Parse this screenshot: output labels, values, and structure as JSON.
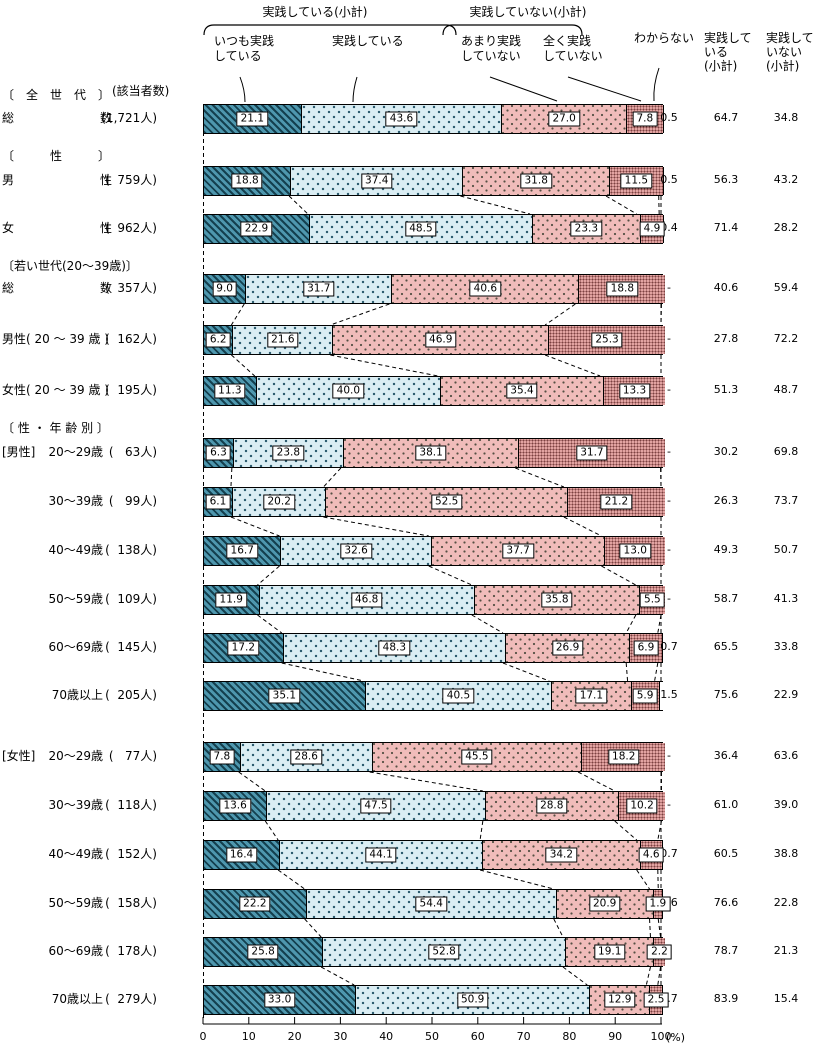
{
  "header": {
    "people_col": "(該当者数)",
    "practice_subtotal_brace": "実践している(小計)",
    "not_practice_subtotal_brace": "実践していない(小計)",
    "segment_labels": [
      "いつも実践\nしている",
      "実践している",
      "あまり実践\nしていない",
      "全く実践\nしていない",
      "わからない"
    ],
    "sub_yes_col": "実践して\nいる\n(小計)",
    "sub_no_col": "実践して\nいない\n(小計)"
  },
  "axis": {
    "ticks": [
      0,
      10,
      20,
      30,
      40,
      50,
      60,
      70,
      80,
      90,
      100
    ],
    "unit": "(%)",
    "xlim": [
      0,
      100
    ]
  },
  "colors": {
    "always_base": "#4E97AE",
    "always_stripe": "#14404F",
    "practice_base": "#DAEDF3",
    "practice_dot": "#27576B",
    "notmuch_base": "#F0BCBA",
    "notmuch_dot": "#555044",
    "never_base": "#E5A6A4",
    "never_dot": "#7C4040",
    "bar_border": "#000000"
  },
  "chart_data": {
    "type": "bar",
    "stacked": true,
    "orientation": "horizontal",
    "series": [
      "いつも実践している",
      "実践している",
      "あまり実践していない",
      "全く実践していない",
      "わからない"
    ],
    "xlim": [
      0,
      100
    ],
    "groups": [
      {
        "section": "〔　全　世　代　〕",
        "rows": [
          {
            "prefix": "",
            "label": "総|数",
            "count": "(1,721人)",
            "values": [
              21.1,
              43.6,
              27.0,
              7.8
            ],
            "dontknow": "0.5",
            "subtotal_yes": "64.7",
            "subtotal_no": "34.8"
          }
        ]
      },
      {
        "section": "〔　　　性　　　〕",
        "rows": [
          {
            "prefix": "",
            "label": "男|性",
            "count": "(  759人)",
            "values": [
              18.8,
              37.4,
              31.8,
              11.5
            ],
            "dontknow": "0.5",
            "subtotal_yes": "56.3",
            "subtotal_no": "43.2"
          },
          {
            "prefix": "",
            "label": "女|性",
            "count": "(  962人)",
            "values": [
              22.9,
              48.5,
              23.3,
              4.9
            ],
            "dontknow": "0.4",
            "subtotal_yes": "71.4",
            "subtotal_no": "28.2"
          }
        ]
      },
      {
        "section": "〔若い世代(20〜39歳)〕",
        "rows": [
          {
            "prefix": "",
            "label": "総|数",
            "count": "(  357人)",
            "values": [
              9.0,
              31.7,
              40.6,
              18.8
            ],
            "dontknow": "-",
            "subtotal_yes": "40.6",
            "subtotal_no": "59.4"
          },
          {
            "prefix": "",
            "label": "男性( 20 〜 39 歳 )",
            "count": "(  162人)",
            "values": [
              6.2,
              21.6,
              46.9,
              25.3
            ],
            "dontknow": "-",
            "subtotal_yes": "27.8",
            "subtotal_no": "72.2"
          },
          {
            "prefix": "",
            "label": "女性( 20 〜 39 歳 )",
            "count": "(  195人)",
            "values": [
              11.3,
              40.0,
              35.4,
              13.3
            ],
            "dontknow": "-",
            "subtotal_yes": "51.3",
            "subtotal_no": "48.7"
          }
        ]
      },
      {
        "section": "〔 性 ・ 年 齢 別 〕",
        "rows": [
          {
            "prefix": "[男性]",
            "label": "20〜29歳",
            "count": "(   63人)",
            "values": [
              6.3,
              23.8,
              38.1,
              31.7
            ],
            "dontknow": "-",
            "subtotal_yes": "30.2",
            "subtotal_no": "69.8"
          },
          {
            "prefix": "",
            "label": "30〜39歳",
            "count": "(   99人)",
            "values": [
              6.1,
              20.2,
              52.5,
              21.2
            ],
            "dontknow": "-",
            "subtotal_yes": "26.3",
            "subtotal_no": "73.7"
          },
          {
            "prefix": "",
            "label": "40〜49歳",
            "count": "(  138人)",
            "values": [
              16.7,
              32.6,
              37.7,
              13.0
            ],
            "dontknow": "-",
            "subtotal_yes": "49.3",
            "subtotal_no": "50.7"
          },
          {
            "prefix": "",
            "label": "50〜59歳",
            "count": "(  109人)",
            "values": [
              11.9,
              46.8,
              35.8,
              5.5
            ],
            "dontknow": "-",
            "subtotal_yes": "58.7",
            "subtotal_no": "41.3"
          },
          {
            "prefix": "",
            "label": "60〜69歳",
            "count": "(  145人)",
            "values": [
              17.2,
              48.3,
              26.9,
              6.9
            ],
            "dontknow": "0.7",
            "subtotal_yes": "65.5",
            "subtotal_no": "33.8"
          },
          {
            "prefix": "",
            "label": "70歳以上",
            "count": "(  205人)",
            "values": [
              35.1,
              40.5,
              17.1,
              5.9
            ],
            "dontknow": "1.5",
            "subtotal_yes": "75.6",
            "subtotal_no": "22.9"
          }
        ]
      },
      {
        "section": "",
        "rows": [
          {
            "prefix": "[女性]",
            "label": "20〜29歳",
            "count": "(   77人)",
            "values": [
              7.8,
              28.6,
              45.5,
              18.2
            ],
            "dontknow": "-",
            "subtotal_yes": "36.4",
            "subtotal_no": "63.6"
          },
          {
            "prefix": "",
            "label": "30〜39歳",
            "count": "(  118人)",
            "values": [
              13.6,
              47.5,
              28.8,
              10.2
            ],
            "dontknow": "-",
            "subtotal_yes": "61.0",
            "subtotal_no": "39.0"
          },
          {
            "prefix": "",
            "label": "40〜49歳",
            "count": "(  152人)",
            "values": [
              16.4,
              44.1,
              34.2,
              4.6
            ],
            "dontknow": "0.7",
            "subtotal_yes": "60.5",
            "subtotal_no": "38.8"
          },
          {
            "prefix": "",
            "label": "50〜59歳",
            "count": "(  158人)",
            "values": [
              22.2,
              54.4,
              20.9,
              1.9
            ],
            "dontknow": "0.6",
            "subtotal_yes": "76.6",
            "subtotal_no": "22.8"
          },
          {
            "prefix": "",
            "label": "60〜69歳",
            "count": "(  178人)",
            "values": [
              25.8,
              52.8,
              19.1,
              2.2
            ],
            "dontknow": "-",
            "subtotal_yes": "78.7",
            "subtotal_no": "21.3"
          },
          {
            "prefix": "",
            "label": "70歳以上",
            "count": "(  279人)",
            "values": [
              33.0,
              50.9,
              12.9,
              2.5
            ],
            "dontknow": "0.7",
            "subtotal_yes": "83.9",
            "subtotal_no": "15.4"
          }
        ]
      }
    ]
  }
}
